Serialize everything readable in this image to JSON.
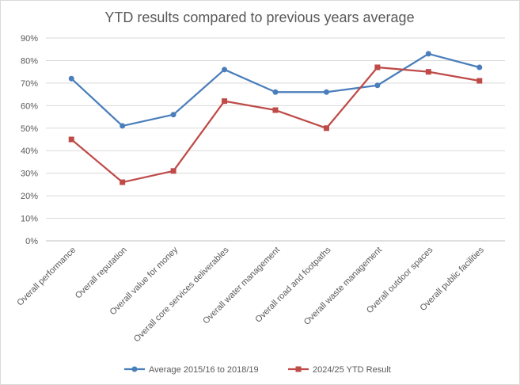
{
  "chart_data": {
    "type": "line",
    "title": "YTD results compared to previous years average",
    "categories": [
      "Overall performance",
      "Overall reputation",
      "Overall value for money",
      "Overall core services deliverables",
      "Overall water management",
      "Overall road and footpaths",
      "Overall waste management",
      "Overall outdoor spaces",
      "Overall public facilities"
    ],
    "series": [
      {
        "name": "Average 2015/16 to 2018/19",
        "color": "#4a7ebb",
        "marker": "circle",
        "values": [
          0.72,
          0.51,
          0.56,
          0.76,
          0.66,
          0.66,
          0.69,
          0.83,
          0.77
        ]
      },
      {
        "name": "2024/25 YTD Result",
        "color": "#be4b48",
        "marker": "square",
        "values": [
          0.45,
          0.26,
          0.31,
          0.62,
          0.58,
          0.5,
          0.77,
          0.75,
          0.71
        ]
      }
    ],
    "ylim": [
      0,
      0.9
    ],
    "yticks": [
      "0%",
      "10%",
      "20%",
      "30%",
      "40%",
      "50%",
      "60%",
      "70%",
      "80%",
      "90%"
    ],
    "grid": true,
    "legend_position": "bottom"
  }
}
